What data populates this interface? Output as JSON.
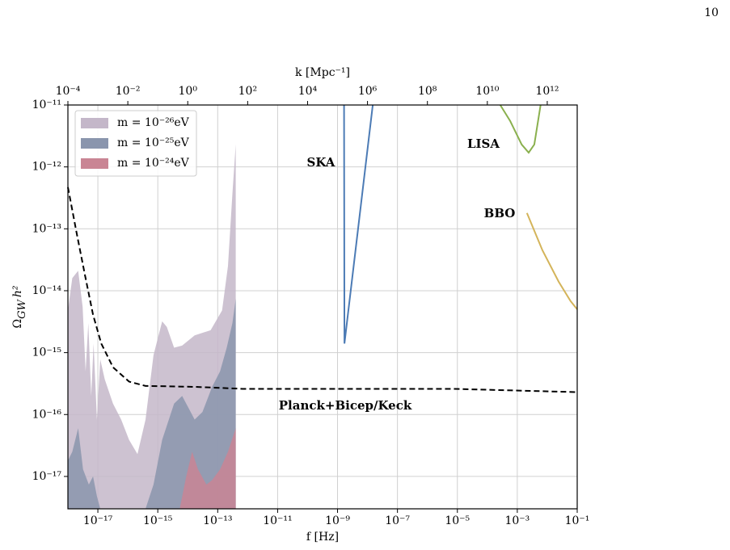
{
  "page_number": "10",
  "chart_data": {
    "type": "area",
    "xlabel": "f  [Hz]",
    "x2label": "k  [Mpc⁻¹]",
    "ylabel": [
      "Ω",
      "GW",
      "h²"
    ],
    "log_x": true,
    "log_y": true,
    "grid": true,
    "legend": "upper left",
    "xlim": [
      1e-18,
      0.1
    ],
    "x2lim": [
      0.0001,
      10000000000000.0
    ],
    "ylim": [
      3e-18,
      1e-11
    ],
    "xticks": [
      {
        "value": 1e-17,
        "label": "10⁻¹⁷"
      },
      {
        "value": 1e-15,
        "label": "10⁻¹⁵"
      },
      {
        "value": 1e-13,
        "label": "10⁻¹³"
      },
      {
        "value": 1e-11,
        "label": "10⁻¹¹"
      },
      {
        "value": 1e-09,
        "label": "10⁻⁹"
      },
      {
        "value": 1e-07,
        "label": "10⁻⁷"
      },
      {
        "value": 1e-05,
        "label": "10⁻⁵"
      },
      {
        "value": 0.001,
        "label": "10⁻³"
      },
      {
        "value": 0.1,
        "label": "10⁻¹"
      }
    ],
    "x2ticks": [
      {
        "value": 0.0001,
        "label": "10⁻⁴"
      },
      {
        "value": 0.01,
        "label": "10⁻²"
      },
      {
        "value": 1,
        "label": "10⁰"
      },
      {
        "value": 100,
        "label": "10²"
      },
      {
        "value": 10000,
        "label": "10⁴"
      },
      {
        "value": 1000000,
        "label": "10⁶"
      },
      {
        "value": 100000000,
        "label": "10⁸"
      },
      {
        "value": 10000000000,
        "label": "10¹⁰"
      },
      {
        "value": 1000000000000,
        "label": "10¹²"
      }
    ],
    "yticks": [
      {
        "value": 1e-17,
        "label": "10⁻¹⁷"
      },
      {
        "value": 1e-16,
        "label": "10⁻¹⁶"
      },
      {
        "value": 1e-15,
        "label": "10⁻¹⁵"
      },
      {
        "value": 1e-14,
        "label": "10⁻¹⁴"
      },
      {
        "value": 1e-13,
        "label": "10⁻¹³"
      },
      {
        "value": 1e-12,
        "label": "10⁻¹²"
      },
      {
        "value": 1e-11,
        "label": "10⁻¹¹"
      }
    ],
    "series": [
      {
        "name": "m = 10⁻²⁶eV",
        "color": "#c4b7c9",
        "x": [
          1e-18,
          1.4e-18,
          2.2e-18,
          3.1e-18,
          3.9e-18,
          4.8e-18,
          6e-18,
          7.2e-18,
          9.3e-18,
          1.2e-17,
          1.7e-17,
          3.2e-17,
          6e-17,
          1.1e-16,
          2.1e-16,
          3.9e-16,
          7.2e-16,
          1.4e-15,
          2e-15,
          3.5e-15,
          6.5e-15,
          1.7e-14,
          5.8e-14,
          1.4e-13,
          2.2e-13,
          3.1e-13,
          4e-13
        ],
        "values": [
          4.8e-15,
          1.6e-14,
          2.1e-14,
          5.5e-15,
          5e-16,
          3e-15,
          2e-16,
          1.4e-15,
          8.3e-17,
          7.8e-16,
          3.7e-16,
          1.5e-16,
          8.3e-17,
          3.9e-17,
          2.3e-17,
          8.3e-17,
          9.1e-16,
          3.2e-15,
          2.6e-15,
          1.2e-15,
          1.3e-15,
          1.9e-15,
          2.3e-15,
          4.8e-15,
          2.5e-14,
          3.7e-13,
          2.3e-12
        ]
      },
      {
        "name": "m = 10⁻²⁵eV",
        "color": "#8a95ad",
        "x": [
          1e-18,
          1.4e-18,
          2.2e-18,
          3.2e-18,
          5e-18,
          6.9e-18,
          9.3e-18,
          1.2e-17,
          6e-17,
          3.9e-16,
          7.2e-16,
          1.4e-15,
          3.5e-15,
          6.5e-15,
          1.7e-14,
          3.1e-14,
          6.5e-14,
          1.2e-13,
          2e-13,
          3.1e-13,
          4e-13
        ],
        "values": [
          1.8e-17,
          2.5e-17,
          6e-17,
          1.3e-17,
          7.4e-18,
          1e-17,
          4.8e-18,
          3e-18,
          null,
          3e-18,
          7.4e-18,
          3.9e-17,
          1.5e-16,
          2e-16,
          8.3e-17,
          1.1e-16,
          2.8e-16,
          5e-16,
          1.2e-15,
          3e-15,
          7.4e-15
        ]
      },
      {
        "name": "m = 10⁻²⁴eV",
        "color": "#c98594",
        "x": [
          5.4e-15,
          8.9e-15,
          1.4e-14,
          2.2e-14,
          4.2e-14,
          6.5e-14,
          1.2e-13,
          2.2e-13,
          4e-13
        ],
        "values": [
          3e-18,
          1e-17,
          2.5e-17,
          1.3e-17,
          7.4e-18,
          8.7e-18,
          1.3e-17,
          2.5e-17,
          6e-17
        ]
      }
    ],
    "curves": [
      {
        "name": "Planck+Bicep/Keck",
        "color": "#000000",
        "dashed": true,
        "x": [
          1e-18,
          2e-18,
          3.7e-18,
          6.9e-18,
          1.3e-17,
          3.2e-17,
          1.1e-16,
          3.9e-16,
          1.7e-14,
          6.9e-13,
          1.2e-09,
          7.2e-06,
          0.1
        ],
        "values": [
          4.7e-13,
          8.1e-14,
          1.8e-14,
          4.1e-15,
          1.4e-15,
          5.8e-16,
          3.4e-16,
          2.9e-16,
          2.8e-16,
          2.6e-16,
          2.6e-16,
          2.6e-16,
          2.3e-16
        ]
      },
      {
        "name": "SKA",
        "color": "#4c7bb5",
        "dashed": false,
        "x": [
          1.65e-09,
          1.7e-09,
          1.5e-08
        ],
        "values": [
          1e-11,
          1.4e-15,
          1e-11
        ]
      },
      {
        "name": "LISA",
        "color": "#8ab04e",
        "dashed": false,
        "x": [
          0.00027,
          0.00058,
          0.0014,
          0.0024,
          0.0037,
          0.006
        ],
        "values": [
          1e-11,
          5.5e-12,
          2.3e-12,
          1.7e-12,
          2.3e-12,
          1e-11
        ]
      },
      {
        "name": "BBO",
        "color": "#d4b45a",
        "dashed": false,
        "x": [
          0.0021,
          0.0069,
          0.024,
          0.06,
          0.1
        ],
        "values": [
          1.8e-13,
          4.5e-14,
          1.4e-14,
          6.8e-15,
          5e-15
        ]
      }
    ]
  }
}
